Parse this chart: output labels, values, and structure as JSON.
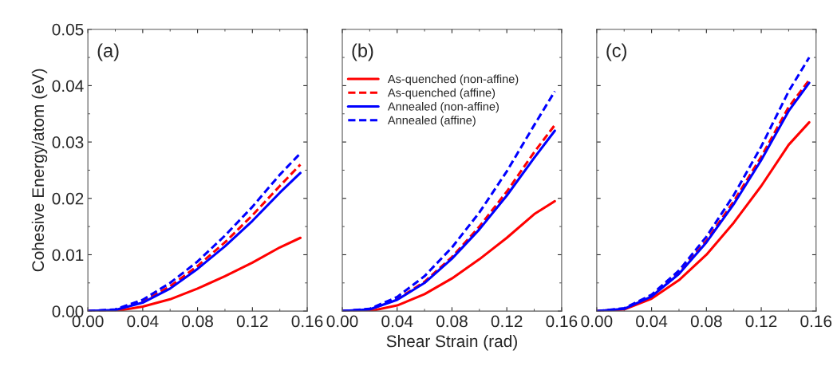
{
  "chart_data": [
    {
      "type": "line",
      "annotations": [
        "(a)"
      ],
      "ylabel": "Cohesive Energy/atom (eV)",
      "x": [
        0,
        0.02,
        0.04,
        0.06,
        0.08,
        0.1,
        0.12,
        0.14,
        0.155
      ],
      "series": [
        {
          "color": "#ff0000",
          "line_style": "solid",
          "values": [
            0,
            0,
            0.0008,
            0.0021,
            0.004,
            0.0062,
            0.0086,
            0.0113,
            0.013
          ]
        },
        {
          "color": "#ff0000",
          "line_style": "dashed",
          "values": [
            0,
            0.0002,
            0.0017,
            0.0044,
            0.008,
            0.0122,
            0.017,
            0.0222,
            0.026
          ]
        },
        {
          "color": "#0000ff",
          "line_style": "solid",
          "values": [
            0,
            0.0002,
            0.0015,
            0.004,
            0.0075,
            0.0115,
            0.016,
            0.021,
            0.0245
          ]
        },
        {
          "color": "#0000ff",
          "line_style": "dashed",
          "values": [
            0,
            0.0003,
            0.002,
            0.005,
            0.0088,
            0.0134,
            0.0185,
            0.0242,
            0.028
          ]
        }
      ],
      "xlim": [
        0,
        0.16
      ],
      "ylim": [
        0,
        0.05
      ],
      "xticks": [
        {
          "value": 0,
          "label": "0.00"
        },
        {
          "value": 0.04,
          "label": "0.04"
        },
        {
          "value": 0.08,
          "label": "0.08"
        },
        {
          "value": 0.12,
          "label": "0.12"
        },
        {
          "value": 0.16,
          "label": "0.16"
        }
      ],
      "yticks": [
        {
          "value": 0,
          "label": "0.00"
        },
        {
          "value": 0.01,
          "label": "0.01"
        },
        {
          "value": 0.02,
          "label": "0.02"
        },
        {
          "value": 0.03,
          "label": "0.03"
        },
        {
          "value": 0.04,
          "label": "0.04"
        },
        {
          "value": 0.05,
          "label": "0.05"
        }
      ],
      "grid": false,
      "legend": false
    },
    {
      "type": "line",
      "annotations": [
        "(b)"
      ],
      "xlabel": "Shear Strain (rad)",
      "x": [
        0,
        0.02,
        0.04,
        0.06,
        0.08,
        0.1,
        0.12,
        0.14,
        0.155
      ],
      "series": [
        {
          "name": "As-quenched (non-affine)",
          "color": "#ff0000",
          "line_style": "solid",
          "values": [
            0,
            0,
            0.001,
            0.003,
            0.0058,
            0.0092,
            0.013,
            0.0172,
            0.0195
          ]
        },
        {
          "name": "As-quenched (affine)",
          "color": "#ff0000",
          "line_style": "dashed",
          "values": [
            0,
            0.0003,
            0.0021,
            0.0052,
            0.0096,
            0.015,
            0.0212,
            0.0282,
            0.033
          ]
        },
        {
          "name": "Annealed (non-affine)",
          "color": "#0000ff",
          "line_style": "solid",
          "values": [
            0,
            0.0003,
            0.002,
            0.005,
            0.0093,
            0.0145,
            0.0205,
            0.0272,
            0.032
          ]
        },
        {
          "name": "Annealed (affine)",
          "color": "#0000ff",
          "line_style": "dashed",
          "values": [
            0,
            0.0004,
            0.0025,
            0.0062,
            0.0113,
            0.0175,
            0.0248,
            0.033,
            0.039
          ]
        }
      ],
      "xlim": [
        0,
        0.16
      ],
      "ylim": [
        0,
        0.05
      ],
      "xticks": [
        {
          "value": 0,
          "label": "0.00"
        },
        {
          "value": 0.04,
          "label": "0.04"
        },
        {
          "value": 0.08,
          "label": "0.08"
        },
        {
          "value": 0.12,
          "label": "0.12"
        },
        {
          "value": 0.16,
          "label": "0.16"
        }
      ],
      "yticks": [
        0,
        0.01,
        0.02,
        0.03,
        0.04,
        0.05
      ],
      "tick_labels": "x",
      "grid": false,
      "legend": "top left"
    },
    {
      "type": "line",
      "annotations": [
        "(c)"
      ],
      "x": [
        0,
        0.02,
        0.04,
        0.06,
        0.08,
        0.1,
        0.12,
        0.14,
        0.155
      ],
      "series": [
        {
          "color": "#ff0000",
          "line_style": "solid",
          "values": [
            0,
            0.0003,
            0.0022,
            0.0055,
            0.01,
            0.0157,
            0.0222,
            0.0295,
            0.0335
          ]
        },
        {
          "color": "#ff0000",
          "line_style": "dashed",
          "values": [
            0,
            0.0004,
            0.0027,
            0.0068,
            0.0125,
            0.0195,
            0.0274,
            0.0362,
            0.041
          ]
        },
        {
          "color": "#0000ff",
          "line_style": "solid",
          "values": [
            0,
            0.0004,
            0.0026,
            0.0066,
            0.0122,
            0.019,
            0.0268,
            0.0355,
            0.0405
          ]
        },
        {
          "color": "#0000ff",
          "line_style": "dashed",
          "values": [
            0,
            0.0005,
            0.0029,
            0.0072,
            0.0132,
            0.0206,
            0.0292,
            0.039,
            0.045
          ]
        }
      ],
      "xlim": [
        0,
        0.16
      ],
      "ylim": [
        0,
        0.05
      ],
      "xticks": [
        {
          "value": 0,
          "label": "0.00"
        },
        {
          "value": 0.04,
          "label": "0.04"
        },
        {
          "value": 0.08,
          "label": "0.08"
        },
        {
          "value": 0.12,
          "label": "0.12"
        },
        {
          "value": 0.16,
          "label": "0.16"
        }
      ],
      "yticks": [
        0,
        0.01,
        0.02,
        0.03,
        0.04,
        0.05
      ],
      "tick_labels": "x",
      "grid": false,
      "legend": false
    }
  ]
}
